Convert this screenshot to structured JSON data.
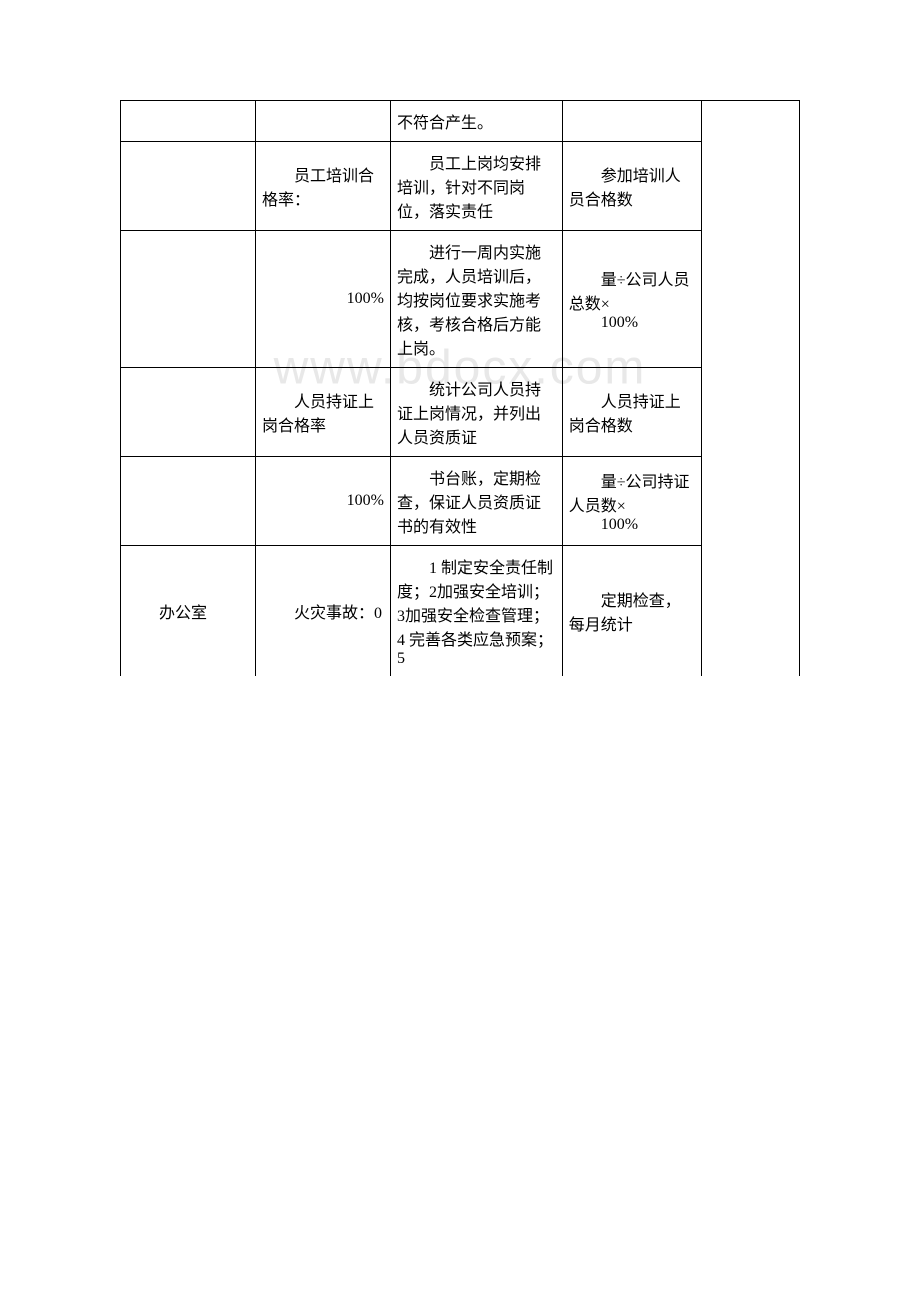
{
  "watermark": "www.bdocx.com",
  "table": {
    "border_color": "#000000",
    "background_color": "#ffffff",
    "text_color": "#000000",
    "font_family": "SimSun",
    "font_size": 16,
    "columns": [
      {
        "width_pct": 16.5
      },
      {
        "width_pct": 16.5
      },
      {
        "width_pct": 21
      },
      {
        "width_pct": 17
      },
      {
        "width_pct": 12
      }
    ],
    "rows": [
      {
        "col1": "",
        "col2": "",
        "col3": "不符合产生。",
        "col4": "",
        "col5": "",
        "col5_merged": true
      },
      {
        "col1": "",
        "col2": "员工培训合格率：",
        "col3": "员工上岗均安排培训，针对不同岗位，落实责任",
        "col4": "参加培训人员合格数",
        "col5": "",
        "col5_merged": true
      },
      {
        "col1": "",
        "col2": "100%",
        "col3": "进行一周内实施完成，人员培训后，均按岗位要求实施考核，考核合格后方能上岗。",
        "col4_line1": "量÷公司人员总数×",
        "col4_line2": "100%",
        "col5": "",
        "col5_merged": true
      },
      {
        "col1": "",
        "col2": "人员持证上岗合格率",
        "col3": "统计公司人员持证上岗情况，并列出人员资质证",
        "col4": "人员持证上岗合格数",
        "col5": "",
        "col5_merged": true
      },
      {
        "col1": "",
        "col2": "100%",
        "col3": "书台账，定期检查，保证人员资质证书的有效性",
        "col4_line1": "量÷公司持证人员数×",
        "col4_line2": "100%",
        "col5": "",
        "col5_merged": true
      },
      {
        "col1": "办公室",
        "col2": "火灾事故：0",
        "col3": "1 制定安全责任制度；2加强安全培训；3加强安全检查管理；4 完善各类应急预案；5",
        "col4": "定期检查，每月统计",
        "col5": "",
        "col5_merged": true
      }
    ]
  }
}
